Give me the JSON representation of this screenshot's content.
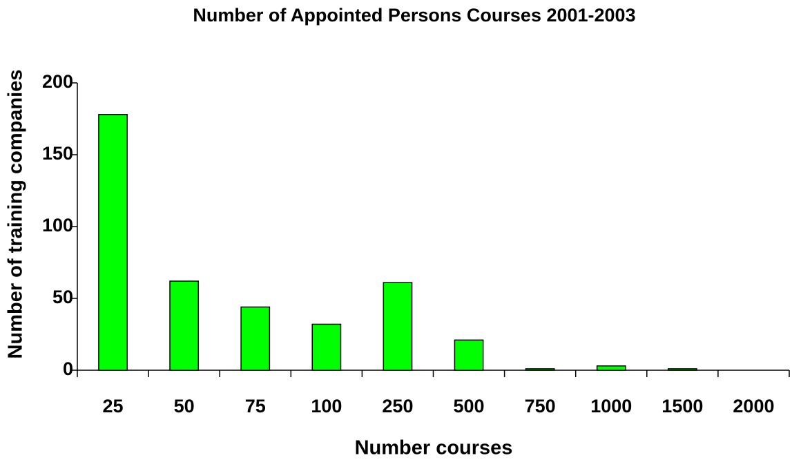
{
  "chart_data": {
    "type": "bar",
    "title": "Number of Appointed Persons Courses 2001-2003",
    "x_label": "Number courses",
    "y_label": "Number of training companies",
    "categories": [
      "25",
      "50",
      "75",
      "100",
      "250",
      "500",
      "750",
      "1000",
      "1500",
      "2000"
    ],
    "values": [
      178,
      62,
      44,
      32,
      61,
      21,
      1,
      3,
      1,
      0
    ],
    "color": "#00ff00",
    "ylim": [
      0,
      200
    ],
    "yticks": [
      0,
      50,
      100,
      150,
      200
    ],
    "grid": false
  }
}
